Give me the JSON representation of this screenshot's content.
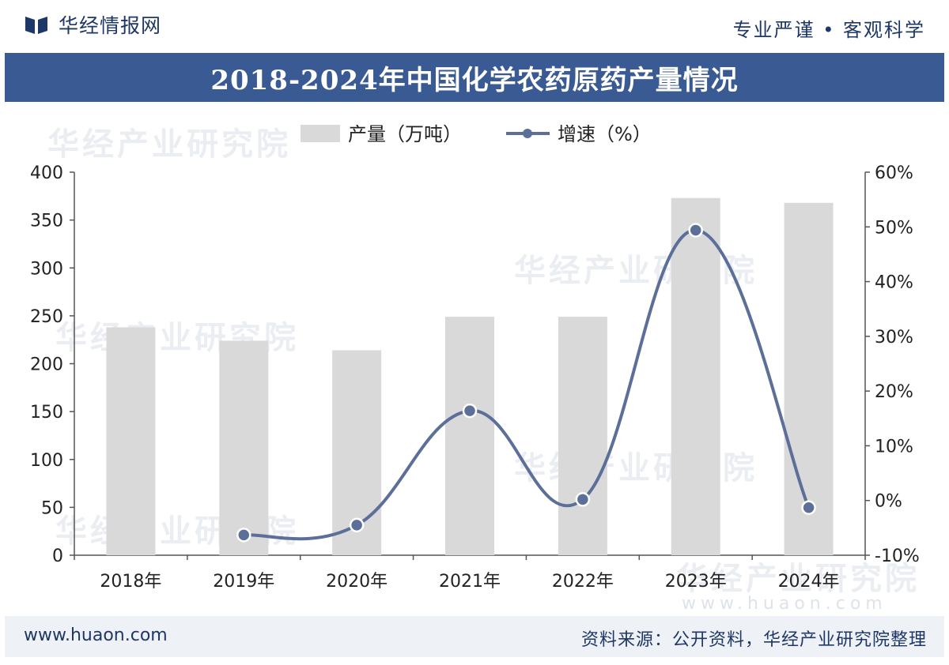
{
  "header": {
    "brand": "华经情报网",
    "slogan": "专业严谨 • 客观科学"
  },
  "title": "2018-2024年中国化学农药原药产量情况",
  "footer": {
    "url": "www.huaon.com",
    "source": "资料来源：公开资料，华经产业研究院整理"
  },
  "watermark": {
    "text": "华经产业研究院",
    "url": "www.huaon.com"
  },
  "colors": {
    "header_text": "#1f3766",
    "title_band": "#3a5a93",
    "bar": "#d9d9d9",
    "line": "#5b6f99"
  },
  "chart_data": {
    "type": "bar",
    "categories": [
      "2018年",
      "2019年",
      "2020年",
      "2021年",
      "2022年",
      "2023年",
      "2024年"
    ],
    "series": [
      {
        "name": "产量（万吨）",
        "type": "bar",
        "axis": "left",
        "values": [
          238,
          224,
          214,
          249,
          249,
          373,
          368
        ]
      },
      {
        "name": "增速（%）",
        "type": "line",
        "axis": "right",
        "values": [
          null,
          -6.3,
          -4.5,
          16.4,
          0.2,
          49.4,
          -1.3
        ]
      }
    ],
    "y_left": {
      "min": 0,
      "max": 400,
      "ticks": [
        0,
        50,
        100,
        150,
        200,
        250,
        300,
        350,
        400
      ]
    },
    "y_right": {
      "min": -10,
      "max": 60,
      "ticks": [
        "-10%",
        "0%",
        "10%",
        "20%",
        "30%",
        "40%",
        "50%",
        "60%"
      ]
    },
    "legend": {
      "position": "top-center",
      "items": [
        "产量（万吨）",
        "增速（%）"
      ]
    },
    "grid": false
  }
}
